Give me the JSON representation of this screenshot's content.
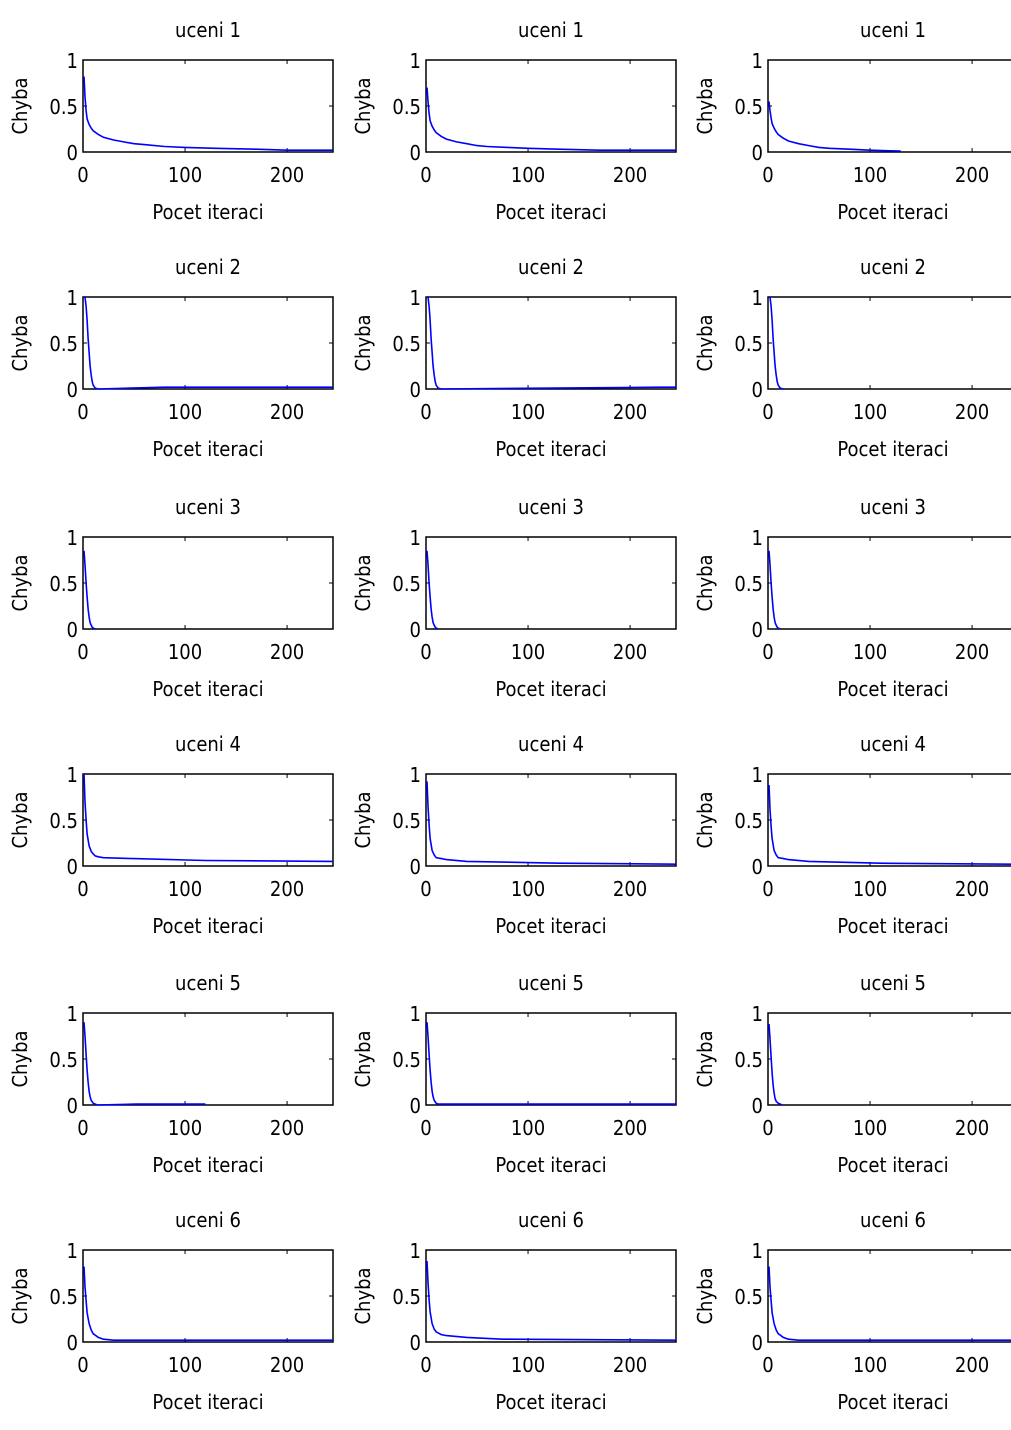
{
  "chart_data": [
    {
      "type": "line",
      "title": "uceni 1",
      "xlabel": "Pocet iteraci",
      "ylabel": "Chyba",
      "xlim": [
        0,
        245
      ],
      "ylim": [
        0,
        1
      ],
      "xticks": [
        0,
        100,
        200
      ],
      "yticks": [
        0,
        0.5,
        1
      ],
      "grid": false,
      "series": [
        {
          "color": "#0000ff",
          "x": [
            1,
            2,
            3,
            4,
            6,
            8,
            10,
            15,
            20,
            30,
            40,
            50,
            60,
            80,
            100,
            130,
            170,
            200,
            245
          ],
          "y": [
            0.82,
            0.6,
            0.45,
            0.36,
            0.3,
            0.26,
            0.23,
            0.19,
            0.16,
            0.13,
            0.11,
            0.09,
            0.08,
            0.06,
            0.05,
            0.04,
            0.03,
            0.02,
            0.02
          ]
        }
      ]
    },
    {
      "type": "line",
      "title": "uceni 1",
      "xlabel": "Pocet iteraci",
      "ylabel": "Chyba",
      "xlim": [
        0,
        245
      ],
      "ylim": [
        0,
        1
      ],
      "xticks": [
        0,
        100,
        200
      ],
      "yticks": [
        0,
        0.5,
        1
      ],
      "grid": false,
      "series": [
        {
          "color": "#0000ff",
          "x": [
            1,
            2,
            3,
            4,
            6,
            8,
            10,
            15,
            20,
            30,
            40,
            50,
            60,
            80,
            100,
            130,
            170,
            200,
            245
          ],
          "y": [
            0.7,
            0.55,
            0.42,
            0.34,
            0.28,
            0.24,
            0.21,
            0.17,
            0.14,
            0.11,
            0.09,
            0.07,
            0.06,
            0.05,
            0.04,
            0.03,
            0.02,
            0.02,
            0.02
          ]
        }
      ]
    },
    {
      "type": "line",
      "title": "uceni 1",
      "xlabel": "Pocet iteraci",
      "ylabel": "Chyba",
      "xlim": [
        0,
        245
      ],
      "ylim": [
        0,
        1
      ],
      "xticks": [
        0,
        100,
        200
      ],
      "yticks": [
        0,
        0.5,
        1
      ],
      "grid": false,
      "series": [
        {
          "color": "#0000ff",
          "x": [
            1,
            2,
            3,
            4,
            6,
            8,
            10,
            15,
            20,
            30,
            40,
            50,
            60,
            80,
            100,
            130
          ],
          "y": [
            0.55,
            0.45,
            0.37,
            0.31,
            0.26,
            0.22,
            0.19,
            0.15,
            0.12,
            0.09,
            0.07,
            0.05,
            0.04,
            0.03,
            0.02,
            0.01
          ]
        }
      ]
    },
    {
      "type": "line",
      "title": "uceni 2",
      "xlabel": "Pocet iteraci",
      "ylabel": "Chyba",
      "xlim": [
        0,
        245
      ],
      "ylim": [
        0,
        1
      ],
      "xticks": [
        0,
        100,
        200
      ],
      "yticks": [
        0,
        0.5,
        1
      ],
      "grid": false,
      "series": [
        {
          "color": "#0000ff",
          "x": [
            1,
            2,
            3,
            4,
            5,
            6,
            7,
            8,
            9,
            10,
            12,
            15,
            80,
            120,
            245
          ],
          "y": [
            1.0,
            1.0,
            0.9,
            0.75,
            0.55,
            0.4,
            0.25,
            0.15,
            0.08,
            0.04,
            0.01,
            0.0,
            0.02,
            0.02,
            0.02
          ]
        }
      ]
    },
    {
      "type": "line",
      "title": "uceni 2",
      "xlabel": "Pocet iteraci",
      "ylabel": "Chyba",
      "xlim": [
        0,
        245
      ],
      "ylim": [
        0,
        1
      ],
      "xticks": [
        0,
        100,
        200
      ],
      "yticks": [
        0,
        0.5,
        1
      ],
      "grid": false,
      "series": [
        {
          "color": "#0000ff",
          "x": [
            1,
            2,
            3,
            4,
            5,
            6,
            7,
            8,
            9,
            10,
            12,
            15,
            230,
            245
          ],
          "y": [
            1.0,
            1.0,
            0.9,
            0.75,
            0.55,
            0.4,
            0.25,
            0.15,
            0.08,
            0.04,
            0.01,
            0.0,
            0.02,
            0.02
          ]
        }
      ]
    },
    {
      "type": "line",
      "title": "uceni 2",
      "xlabel": "Pocet iteraci",
      "ylabel": "Chyba",
      "xlim": [
        0,
        245
      ],
      "ylim": [
        0,
        1
      ],
      "xticks": [
        0,
        100,
        200
      ],
      "yticks": [
        0,
        0.5,
        1
      ],
      "grid": false,
      "series": [
        {
          "color": "#0000ff",
          "x": [
            1,
            2,
            3,
            4,
            5,
            6,
            7,
            8,
            9,
            10,
            12,
            15
          ],
          "y": [
            1.0,
            1.0,
            0.9,
            0.75,
            0.55,
            0.4,
            0.25,
            0.15,
            0.08,
            0.04,
            0.01,
            0.0
          ]
        }
      ]
    },
    {
      "type": "line",
      "title": "uceni 3",
      "xlabel": "Pocet iteraci",
      "ylabel": "Chyba",
      "xlim": [
        0,
        245
      ],
      "ylim": [
        0,
        1
      ],
      "xticks": [
        0,
        100,
        200
      ],
      "yticks": [
        0,
        0.5,
        1
      ],
      "grid": false,
      "series": [
        {
          "color": "#0000ff",
          "x": [
            1,
            2,
            3,
            4,
            5,
            6,
            7,
            8,
            9,
            10,
            12
          ],
          "y": [
            0.85,
            0.7,
            0.5,
            0.35,
            0.22,
            0.13,
            0.07,
            0.04,
            0.02,
            0.01,
            0.0
          ]
        }
      ]
    },
    {
      "type": "line",
      "title": "uceni 3",
      "xlabel": "Pocet iteraci",
      "ylabel": "Chyba",
      "xlim": [
        0,
        245
      ],
      "ylim": [
        0,
        1
      ],
      "xticks": [
        0,
        100,
        200
      ],
      "yticks": [
        0,
        0.5,
        1
      ],
      "grid": false,
      "series": [
        {
          "color": "#0000ff",
          "x": [
            1,
            2,
            3,
            4,
            5,
            6,
            7,
            8,
            9,
            10,
            12
          ],
          "y": [
            0.85,
            0.7,
            0.5,
            0.35,
            0.22,
            0.13,
            0.07,
            0.04,
            0.02,
            0.01,
            0.0
          ]
        }
      ]
    },
    {
      "type": "line",
      "title": "uceni 3",
      "xlabel": "Pocet iteraci",
      "ylabel": "Chyba",
      "xlim": [
        0,
        245
      ],
      "ylim": [
        0,
        1
      ],
      "xticks": [
        0,
        100,
        200
      ],
      "yticks": [
        0,
        0.5,
        1
      ],
      "grid": false,
      "series": [
        {
          "color": "#0000ff",
          "x": [
            1,
            2,
            3,
            4,
            5,
            6,
            7,
            8,
            9,
            10,
            12
          ],
          "y": [
            0.85,
            0.7,
            0.5,
            0.35,
            0.22,
            0.13,
            0.07,
            0.04,
            0.02,
            0.01,
            0.0
          ]
        }
      ]
    },
    {
      "type": "line",
      "title": "uceni 4",
      "xlabel": "Pocet iteraci",
      "ylabel": "Chyba",
      "xlim": [
        0,
        245
      ],
      "ylim": [
        0,
        1
      ],
      "xticks": [
        0,
        100,
        200
      ],
      "yticks": [
        0,
        0.5,
        1
      ],
      "grid": false,
      "series": [
        {
          "color": "#0000ff",
          "x": [
            1,
            2,
            3,
            4,
            6,
            8,
            10,
            12,
            15,
            20,
            50,
            120,
            245
          ],
          "y": [
            1.0,
            0.7,
            0.5,
            0.35,
            0.22,
            0.16,
            0.13,
            0.11,
            0.1,
            0.09,
            0.08,
            0.06,
            0.05
          ]
        }
      ]
    },
    {
      "type": "line",
      "title": "uceni 4",
      "xlabel": "Pocet iteraci",
      "ylabel": "Chyba",
      "xlim": [
        0,
        245
      ],
      "ylim": [
        0,
        1
      ],
      "xticks": [
        0,
        100,
        200
      ],
      "yticks": [
        0,
        0.5,
        1
      ],
      "grid": false,
      "series": [
        {
          "color": "#0000ff",
          "x": [
            1,
            2,
            3,
            4,
            6,
            8,
            10,
            15,
            20,
            40,
            130,
            245
          ],
          "y": [
            0.92,
            0.65,
            0.45,
            0.3,
            0.17,
            0.12,
            0.09,
            0.08,
            0.07,
            0.05,
            0.03,
            0.02
          ]
        }
      ]
    },
    {
      "type": "line",
      "title": "uceni 4",
      "xlabel": "Pocet iteraci",
      "ylabel": "Chyba",
      "xlim": [
        0,
        245
      ],
      "ylim": [
        0,
        1
      ],
      "xticks": [
        0,
        100,
        200
      ],
      "yticks": [
        0,
        0.5,
        1
      ],
      "grid": false,
      "series": [
        {
          "color": "#0000ff",
          "x": [
            1,
            2,
            3,
            4,
            6,
            8,
            10,
            15,
            20,
            40,
            110,
            245
          ],
          "y": [
            0.88,
            0.62,
            0.43,
            0.3,
            0.17,
            0.12,
            0.09,
            0.08,
            0.07,
            0.05,
            0.03,
            0.02
          ]
        }
      ]
    },
    {
      "type": "line",
      "title": "uceni 5",
      "xlabel": "Pocet iteraci",
      "ylabel": "Chyba",
      "xlim": [
        0,
        245
      ],
      "ylim": [
        0,
        1
      ],
      "xticks": [
        0,
        100,
        200
      ],
      "yticks": [
        0,
        0.5,
        1
      ],
      "grid": false,
      "series": [
        {
          "color": "#0000ff",
          "x": [
            1,
            2,
            3,
            4,
            5,
            6,
            7,
            8,
            10,
            12,
            14,
            52,
            120
          ],
          "y": [
            0.9,
            0.75,
            0.55,
            0.38,
            0.25,
            0.15,
            0.09,
            0.05,
            0.02,
            0.01,
            0.0,
            0.01,
            0.01
          ]
        }
      ]
    },
    {
      "type": "line",
      "title": "uceni 5",
      "xlabel": "Pocet iteraci",
      "ylabel": "Chyba",
      "xlim": [
        0,
        245
      ],
      "ylim": [
        0,
        1
      ],
      "xticks": [
        0,
        100,
        200
      ],
      "yticks": [
        0,
        0.5,
        1
      ],
      "grid": false,
      "series": [
        {
          "color": "#0000ff",
          "x": [
            1,
            2,
            3,
            4,
            5,
            6,
            7,
            8,
            10,
            12,
            14,
            245
          ],
          "y": [
            0.9,
            0.75,
            0.55,
            0.38,
            0.25,
            0.15,
            0.09,
            0.05,
            0.02,
            0.01,
            0.01,
            0.01
          ]
        }
      ]
    },
    {
      "type": "line",
      "title": "uceni 5",
      "xlabel": "Pocet iteraci",
      "ylabel": "Chyba",
      "xlim": [
        0,
        245
      ],
      "ylim": [
        0,
        1
      ],
      "xticks": [
        0,
        100,
        200
      ],
      "yticks": [
        0,
        0.5,
        1
      ],
      "grid": false,
      "series": [
        {
          "color": "#0000ff",
          "x": [
            1,
            2,
            3,
            4,
            5,
            6,
            7,
            8,
            10,
            12,
            14
          ],
          "y": [
            0.88,
            0.72,
            0.52,
            0.35,
            0.22,
            0.13,
            0.07,
            0.04,
            0.02,
            0.01,
            0.0
          ]
        }
      ]
    },
    {
      "type": "line",
      "title": "uceni 6",
      "xlabel": "Pocet iteraci",
      "ylabel": "Chyba",
      "xlim": [
        0,
        245
      ],
      "ylim": [
        0,
        1
      ],
      "xticks": [
        0,
        100,
        200
      ],
      "yticks": [
        0,
        0.5,
        1
      ],
      "grid": false,
      "series": [
        {
          "color": "#0000ff",
          "x": [
            1,
            2,
            3,
            4,
            6,
            8,
            10,
            15,
            20,
            30,
            245
          ],
          "y": [
            0.82,
            0.6,
            0.45,
            0.32,
            0.2,
            0.13,
            0.09,
            0.05,
            0.03,
            0.02,
            0.02
          ]
        }
      ]
    },
    {
      "type": "line",
      "title": "uceni 6",
      "xlabel": "Pocet iteraci",
      "ylabel": "Chyba",
      "xlim": [
        0,
        245
      ],
      "ylim": [
        0,
        1
      ],
      "xticks": [
        0,
        100,
        200
      ],
      "yticks": [
        0,
        0.5,
        1
      ],
      "grid": false,
      "series": [
        {
          "color": "#0000ff",
          "x": [
            1,
            2,
            3,
            4,
            6,
            8,
            10,
            15,
            20,
            40,
            75,
            245
          ],
          "y": [
            0.88,
            0.65,
            0.46,
            0.33,
            0.2,
            0.14,
            0.11,
            0.08,
            0.07,
            0.05,
            0.03,
            0.02
          ]
        }
      ]
    },
    {
      "type": "line",
      "title": "uceni 6",
      "xlabel": "Pocet iteraci",
      "ylabel": "Chyba",
      "xlim": [
        0,
        245
      ],
      "ylim": [
        0,
        1
      ],
      "xticks": [
        0,
        100,
        200
      ],
      "yticks": [
        0,
        0.5,
        1
      ],
      "grid": false,
      "series": [
        {
          "color": "#0000ff",
          "x": [
            1,
            2,
            3,
            4,
            6,
            8,
            10,
            15,
            20,
            30,
            245
          ],
          "y": [
            0.82,
            0.6,
            0.45,
            0.32,
            0.2,
            0.13,
            0.09,
            0.05,
            0.03,
            0.02,
            0.02
          ]
        }
      ]
    }
  ]
}
